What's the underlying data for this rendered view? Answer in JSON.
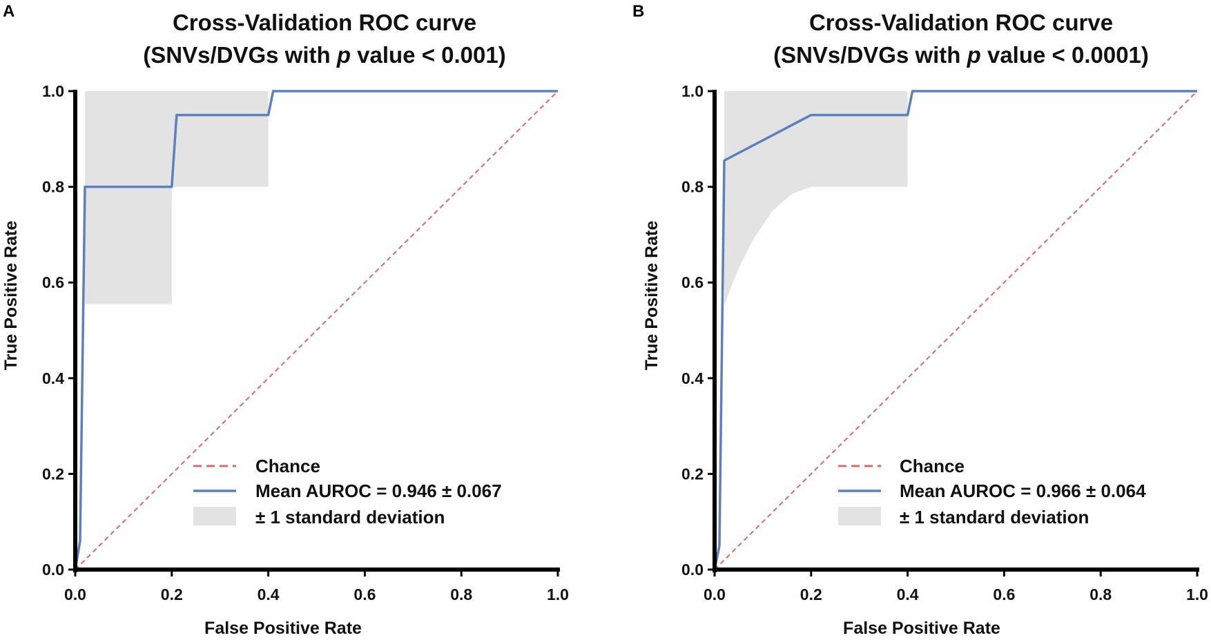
{
  "colors": {
    "mean_curve": "#5b80bd",
    "chance": "#d9696a",
    "band": "#e3e3e3",
    "axis": "#000000"
  },
  "chart_data": [
    {
      "panel": "A",
      "type": "line",
      "title_line1": "Cross-Validation ROC curve",
      "title_line2_pre": "(SNVs/DVGs with ",
      "title_line2_italic": "p",
      "title_line2_post": " value < 0.001)",
      "xlabel": "False Positive Rate",
      "ylabel": "True Positive Rate",
      "xlim": [
        0,
        1
      ],
      "ylim": [
        0,
        1
      ],
      "xticks": [
        "0.0",
        "0.2",
        "0.4",
        "0.6",
        "0.8",
        "1.0"
      ],
      "yticks": [
        "0.0",
        "0.2",
        "0.4",
        "0.6",
        "0.8",
        "1.0"
      ],
      "series": [
        {
          "name": "Chance",
          "style": "dashed",
          "x": [
            0,
            1
          ],
          "y": [
            0,
            1
          ]
        },
        {
          "name": "Mean AUROC = 0.946 ± 0.067",
          "style": "solid",
          "x": [
            0,
            0.01,
            0.02,
            0.2,
            0.21,
            0.4,
            0.41,
            1.0
          ],
          "y": [
            0,
            0.06,
            0.8,
            0.8,
            0.95,
            0.95,
            1.0,
            1.0
          ]
        }
      ],
      "band": {
        "name": "± 1 standard deviation",
        "upper": {
          "x": [
            0.02,
            1.0
          ],
          "y": [
            1.0,
            1.0
          ]
        },
        "lower": {
          "x": [
            0.02,
            0.2,
            0.2,
            0.4,
            0.4,
            1.0
          ],
          "y": [
            0.555,
            0.555,
            0.8,
            0.8,
            1.0,
            1.0
          ]
        }
      },
      "legend": {
        "chance": "Chance",
        "mean": "Mean AUROC = 0.946 ± 0.067",
        "band": "± 1 standard deviation",
        "placement": "lower-right"
      }
    },
    {
      "panel": "B",
      "type": "line",
      "title_line1": "Cross-Validation ROC curve",
      "title_line2_pre": "(SNVs/DVGs with ",
      "title_line2_italic": "p",
      "title_line2_post": " value < 0.0001)",
      "xlabel": "False Positive Rate",
      "ylabel": "True Positive Rate",
      "xlim": [
        0,
        1
      ],
      "ylim": [
        0,
        1
      ],
      "xticks": [
        "0.0",
        "0.2",
        "0.4",
        "0.6",
        "0.8",
        "1.0"
      ],
      "yticks": [
        "0.0",
        "0.2",
        "0.4",
        "0.6",
        "0.8",
        "1.0"
      ],
      "series": [
        {
          "name": "Chance",
          "style": "dashed",
          "x": [
            0,
            1
          ],
          "y": [
            0,
            1
          ]
        },
        {
          "name": "Mean AUROC = 0.966 ± 0.064",
          "style": "solid",
          "x": [
            0,
            0.01,
            0.02,
            0.2,
            0.4,
            0.41,
            1.0
          ],
          "y": [
            0,
            0.05,
            0.855,
            0.95,
            0.95,
            1.0,
            1.0
          ]
        }
      ],
      "band": {
        "name": "± 1 standard deviation",
        "upper": {
          "x": [
            0.02,
            1.0
          ],
          "y": [
            1.0,
            1.0
          ]
        },
        "lower": {
          "x": [
            0.02,
            0.03,
            0.05,
            0.08,
            0.12,
            0.16,
            0.2,
            0.4,
            0.4,
            1.0
          ],
          "y": [
            0.55,
            0.58,
            0.63,
            0.69,
            0.75,
            0.785,
            0.8,
            0.8,
            1.0,
            1.0
          ]
        }
      },
      "legend": {
        "chance": "Chance",
        "mean": "Mean AUROC = 0.966 ± 0.064",
        "band": "± 1 standard deviation",
        "placement": "lower-right"
      }
    }
  ]
}
